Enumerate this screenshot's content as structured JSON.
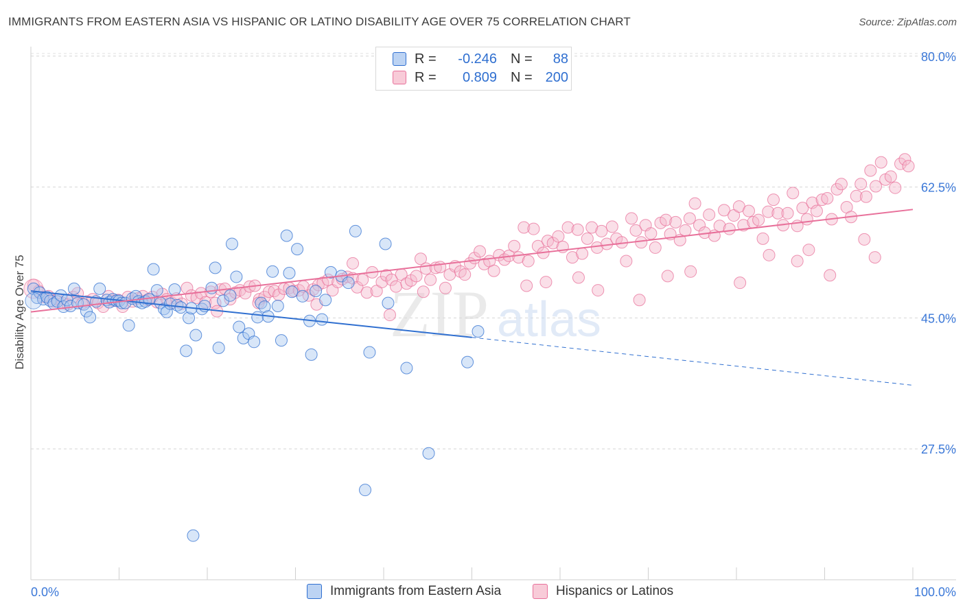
{
  "title": "IMMIGRANTS FROM EASTERN ASIA VS HISPANIC OR LATINO DISABILITY AGE OVER 75 CORRELATION CHART",
  "source": "Source: ZipAtlas.com",
  "watermark": {
    "zip": "ZIP",
    "atlas": "atlas"
  },
  "legend": {
    "rows": [
      {
        "r_label": "R =",
        "r_value": "-0.246",
        "n_label": "N =",
        "n_value": "88"
      },
      {
        "r_label": "R =",
        "r_value": "0.809",
        "n_label": "N =",
        "n_value": "200"
      }
    ]
  },
  "colors": {
    "blue": "#2f6fd0",
    "blue_fill": "#a9c8f0",
    "pink": "#e8709a",
    "pink_fill": "#f5b8cb",
    "axis_text": "#3b78d8"
  },
  "chart_data": {
    "type": "scatter",
    "title": "IMMIGRANTS FROM EASTERN ASIA VS HISPANIC OR LATINO DISABILITY AGE OVER 75 CORRELATION CHART",
    "xlabel": "",
    "ylabel": "Disability Age Over 75",
    "xlim": [
      0,
      100
    ],
    "ylim": [
      10,
      82
    ],
    "x_tick_labels": [
      "0.0%",
      "100.0%"
    ],
    "y_ticks": [
      27.5,
      45.0,
      62.5,
      80.0
    ],
    "y_tick_labels": [
      "27.5%",
      "45.0%",
      "62.5%",
      "80.0%"
    ],
    "grid": "horizontal dashed",
    "legend_position": "top-center",
    "series": [
      {
        "name": "Immigrants from Eastern Asia",
        "color": "#2f6fd0",
        "r": -0.246,
        "n": 88,
        "trend": {
          "x0": 0,
          "y0": 48.6,
          "x1": 50,
          "y1": 42.4,
          "dashed_to_x": 100,
          "dashed_to_y": 36.0
        },
        "points": [
          [
            0.3,
            48.9
          ],
          [
            0.7,
            47.7
          ],
          [
            1.0,
            48.4
          ],
          [
            1.4,
            47.5
          ],
          [
            1.8,
            47.8
          ],
          [
            2.2,
            47.3
          ],
          [
            2.6,
            46.9
          ],
          [
            3.0,
            47.2
          ],
          [
            3.4,
            48.0
          ],
          [
            3.7,
            46.5
          ],
          [
            4.1,
            47.4
          ],
          [
            4.5,
            46.6
          ],
          [
            4.9,
            48.9
          ],
          [
            5.3,
            47.0
          ],
          [
            6.0,
            46.8
          ],
          [
            6.3,
            45.9
          ],
          [
            6.7,
            45.1
          ],
          [
            7.4,
            47.2
          ],
          [
            7.8,
            48.9
          ],
          [
            8.6,
            47.4
          ],
          [
            8.9,
            47.1
          ],
          [
            9.3,
            47.5
          ],
          [
            9.7,
            47.3
          ],
          [
            10.0,
            47.3
          ],
          [
            10.3,
            47.0
          ],
          [
            10.7,
            47.0
          ],
          [
            11.1,
            44.0
          ],
          [
            11.5,
            47.6
          ],
          [
            11.9,
            47.9
          ],
          [
            12.2,
            47.2
          ],
          [
            12.6,
            47.0
          ],
          [
            13.0,
            47.2
          ],
          [
            13.4,
            47.5
          ],
          [
            13.9,
            51.5
          ],
          [
            14.3,
            48.7
          ],
          [
            14.7,
            47.0
          ],
          [
            15.1,
            46.2
          ],
          [
            15.4,
            45.8
          ],
          [
            15.8,
            46.9
          ],
          [
            16.3,
            48.8
          ],
          [
            16.6,
            46.7
          ],
          [
            17.0,
            46.4
          ],
          [
            17.6,
            40.6
          ],
          [
            17.9,
            45.0
          ],
          [
            18.2,
            46.3
          ],
          [
            18.7,
            42.7
          ],
          [
            19.4,
            46.2
          ],
          [
            19.7,
            46.6
          ],
          [
            20.5,
            49.0
          ],
          [
            20.9,
            51.7
          ],
          [
            21.3,
            41.0
          ],
          [
            21.8,
            47.3
          ],
          [
            22.6,
            48.0
          ],
          [
            22.8,
            54.9
          ],
          [
            23.3,
            50.5
          ],
          [
            23.6,
            43.8
          ],
          [
            24.1,
            42.3
          ],
          [
            24.7,
            42.9
          ],
          [
            25.3,
            41.8
          ],
          [
            25.7,
            45.1
          ],
          [
            26.1,
            47.0
          ],
          [
            26.5,
            46.5
          ],
          [
            26.9,
            45.2
          ],
          [
            27.4,
            51.2
          ],
          [
            28.0,
            46.6
          ],
          [
            28.4,
            42.0
          ],
          [
            29.0,
            56.0
          ],
          [
            29.3,
            51.0
          ],
          [
            29.6,
            48.5
          ],
          [
            30.2,
            54.2
          ],
          [
            30.8,
            47.9
          ],
          [
            31.6,
            44.6
          ],
          [
            31.8,
            40.1
          ],
          [
            32.3,
            48.6
          ],
          [
            33.0,
            44.8
          ],
          [
            33.4,
            47.4
          ],
          [
            34.0,
            51.1
          ],
          [
            35.2,
            50.6
          ],
          [
            36.0,
            49.7
          ],
          [
            36.8,
            56.6
          ],
          [
            38.4,
            40.4
          ],
          [
            40.2,
            54.9
          ],
          [
            40.5,
            47.0
          ],
          [
            42.6,
            38.3
          ],
          [
            45.1,
            26.9
          ],
          [
            49.5,
            39.1
          ],
          [
            50.7,
            43.2
          ],
          [
            18.4,
            15.9
          ],
          [
            37.9,
            22.0
          ]
        ]
      },
      {
        "name": "Hispanics or Latinos",
        "color": "#e8709a",
        "r": 0.809,
        "n": 200,
        "trend": {
          "x0": 0,
          "y0": 45.8,
          "x1": 100,
          "y1": 59.5
        },
        "points": [
          [
            0.3,
            49.4
          ],
          [
            0.9,
            48.6
          ],
          [
            1.4,
            47.8
          ],
          [
            2.0,
            47.9
          ],
          [
            2.5,
            47.2
          ],
          [
            3.0,
            47.5
          ],
          [
            3.6,
            47.0
          ],
          [
            4.2,
            46.8
          ],
          [
            4.8,
            47.8
          ],
          [
            5.3,
            48.3
          ],
          [
            5.8,
            46.9
          ],
          [
            6.4,
            47.2
          ],
          [
            7.0,
            47.5
          ],
          [
            7.6,
            47.0
          ],
          [
            8.2,
            46.5
          ],
          [
            8.8,
            47.9
          ],
          [
            9.3,
            47.3
          ],
          [
            9.9,
            47.4
          ],
          [
            10.4,
            46.5
          ],
          [
            11.0,
            47.8
          ],
          [
            11.5,
            47.2
          ],
          [
            12.1,
            47.6
          ],
          [
            12.7,
            47.9
          ],
          [
            13.2,
            47.4
          ],
          [
            13.8,
            47.8
          ],
          [
            14.3,
            47.1
          ],
          [
            14.9,
            48.2
          ],
          [
            15.4,
            47.5
          ],
          [
            16.0,
            47.0
          ],
          [
            16.5,
            47.6
          ],
          [
            17.1,
            46.9
          ],
          [
            17.7,
            49.0
          ],
          [
            18.2,
            48.0
          ],
          [
            18.8,
            47.7
          ],
          [
            19.3,
            48.3
          ],
          [
            19.8,
            47.1
          ],
          [
            20.4,
            48.5
          ],
          [
            20.9,
            47.0
          ],
          [
            21.5,
            48.8
          ],
          [
            22.0,
            48.9
          ],
          [
            22.6,
            47.5
          ],
          [
            23.2,
            48.4
          ],
          [
            23.7,
            48.7
          ],
          [
            24.3,
            48.3
          ],
          [
            24.8,
            49.2
          ],
          [
            25.4,
            49.3
          ],
          [
            25.9,
            47.5
          ],
          [
            26.5,
            47.8
          ],
          [
            27.0,
            48.5
          ],
          [
            27.6,
            48.6
          ],
          [
            28.1,
            48.1
          ],
          [
            28.7,
            48.9
          ],
          [
            29.3,
            49.0
          ],
          [
            29.8,
            48.6
          ],
          [
            30.4,
            48.7
          ],
          [
            30.9,
            49.2
          ],
          [
            31.5,
            48.0
          ],
          [
            32.0,
            48.8
          ],
          [
            32.6,
            49.4
          ],
          [
            33.1,
            49.7
          ],
          [
            33.7,
            50.1
          ],
          [
            34.2,
            48.7
          ],
          [
            34.8,
            49.8
          ],
          [
            35.3,
            50.2
          ],
          [
            35.9,
            50.5
          ],
          [
            36.5,
            50.3
          ],
          [
            37.0,
            49.1
          ],
          [
            37.6,
            50.1
          ],
          [
            38.1,
            48.4
          ],
          [
            38.7,
            51.1
          ],
          [
            39.2,
            48.6
          ],
          [
            39.8,
            49.8
          ],
          [
            40.3,
            50.7
          ],
          [
            40.9,
            50.1
          ],
          [
            41.4,
            49.2
          ],
          [
            42.0,
            50.8
          ],
          [
            42.6,
            49.6
          ],
          [
            43.1,
            50.0
          ],
          [
            43.7,
            50.6
          ],
          [
            44.2,
            52.9
          ],
          [
            44.8,
            51.6
          ],
          [
            45.3,
            50.1
          ],
          [
            45.9,
            51.7
          ],
          [
            46.4,
            51.8
          ],
          [
            47.0,
            49.0
          ],
          [
            47.5,
            50.8
          ],
          [
            48.1,
            51.9
          ],
          [
            48.7,
            51.2
          ],
          [
            49.2,
            50.8
          ],
          [
            49.8,
            52.3
          ],
          [
            50.3,
            53.0
          ],
          [
            50.9,
            53.9
          ],
          [
            51.4,
            52.2
          ],
          [
            52.0,
            52.6
          ],
          [
            52.5,
            51.3
          ],
          [
            53.1,
            53.4
          ],
          [
            53.7,
            52.8
          ],
          [
            54.2,
            53.3
          ],
          [
            54.8,
            54.6
          ],
          [
            55.3,
            53.1
          ],
          [
            55.9,
            57.1
          ],
          [
            56.4,
            52.6
          ],
          [
            57.0,
            56.9
          ],
          [
            57.5,
            54.6
          ],
          [
            58.1,
            53.7
          ],
          [
            58.6,
            55.3
          ],
          [
            59.2,
            55.0
          ],
          [
            59.8,
            55.9
          ],
          [
            60.3,
            54.5
          ],
          [
            60.9,
            57.1
          ],
          [
            61.4,
            53.1
          ],
          [
            62.0,
            56.8
          ],
          [
            62.5,
            53.6
          ],
          [
            63.1,
            55.6
          ],
          [
            63.6,
            57.1
          ],
          [
            64.2,
            54.4
          ],
          [
            64.7,
            56.6
          ],
          [
            65.3,
            54.9
          ],
          [
            65.9,
            57.2
          ],
          [
            66.4,
            55.6
          ],
          [
            67.0,
            55.1
          ],
          [
            67.5,
            52.6
          ],
          [
            68.1,
            58.3
          ],
          [
            68.6,
            56.7
          ],
          [
            69.2,
            55.1
          ],
          [
            69.7,
            57.4
          ],
          [
            70.3,
            56.3
          ],
          [
            70.8,
            54.4
          ],
          [
            71.4,
            57.7
          ],
          [
            72.0,
            58.1
          ],
          [
            72.5,
            56.2
          ],
          [
            73.1,
            57.8
          ],
          [
            73.6,
            55.4
          ],
          [
            74.2,
            56.7
          ],
          [
            74.7,
            58.3
          ],
          [
            75.3,
            60.3
          ],
          [
            75.8,
            57.4
          ],
          [
            76.4,
            56.4
          ],
          [
            76.9,
            58.8
          ],
          [
            77.5,
            56.0
          ],
          [
            78.1,
            57.3
          ],
          [
            78.6,
            59.4
          ],
          [
            79.2,
            56.9
          ],
          [
            79.7,
            58.7
          ],
          [
            80.3,
            59.9
          ],
          [
            80.8,
            57.4
          ],
          [
            81.4,
            59.3
          ],
          [
            81.9,
            57.8
          ],
          [
            82.5,
            58.1
          ],
          [
            83.0,
            55.6
          ],
          [
            83.6,
            59.2
          ],
          [
            84.2,
            60.8
          ],
          [
            84.7,
            59.0
          ],
          [
            85.3,
            57.4
          ],
          [
            85.8,
            59.0
          ],
          [
            86.4,
            61.7
          ],
          [
            86.9,
            57.3
          ],
          [
            87.5,
            59.7
          ],
          [
            88.0,
            58.2
          ],
          [
            88.6,
            60.4
          ],
          [
            89.1,
            59.3
          ],
          [
            89.7,
            60.8
          ],
          [
            90.3,
            61.0
          ],
          [
            90.8,
            58.2
          ],
          [
            91.4,
            62.2
          ],
          [
            91.9,
            62.9
          ],
          [
            92.5,
            59.8
          ],
          [
            93.0,
            58.5
          ],
          [
            93.6,
            61.3
          ],
          [
            94.1,
            62.9
          ],
          [
            94.7,
            61.2
          ],
          [
            95.2,
            64.7
          ],
          [
            95.8,
            62.6
          ],
          [
            96.4,
            65.8
          ],
          [
            96.9,
            63.5
          ],
          [
            97.5,
            63.9
          ],
          [
            98.0,
            62.4
          ],
          [
            98.6,
            65.6
          ],
          [
            99.1,
            66.2
          ],
          [
            99.5,
            65.3
          ],
          [
            21.1,
            45.9
          ],
          [
            25.8,
            47.0
          ],
          [
            32.4,
            46.8
          ],
          [
            36.5,
            52.3
          ],
          [
            40.7,
            45.4
          ],
          [
            44.5,
            48.5
          ],
          [
            56.2,
            49.3
          ],
          [
            58.4,
            49.8
          ],
          [
            62.1,
            50.4
          ],
          [
            64.3,
            48.7
          ],
          [
            69.0,
            47.4
          ],
          [
            72.2,
            50.6
          ],
          [
            74.8,
            51.2
          ],
          [
            80.4,
            49.7
          ],
          [
            83.7,
            53.4
          ],
          [
            86.9,
            52.6
          ],
          [
            88.2,
            54.1
          ],
          [
            90.6,
            50.7
          ],
          [
            94.5,
            55.5
          ],
          [
            95.7,
            53.1
          ]
        ]
      }
    ]
  }
}
